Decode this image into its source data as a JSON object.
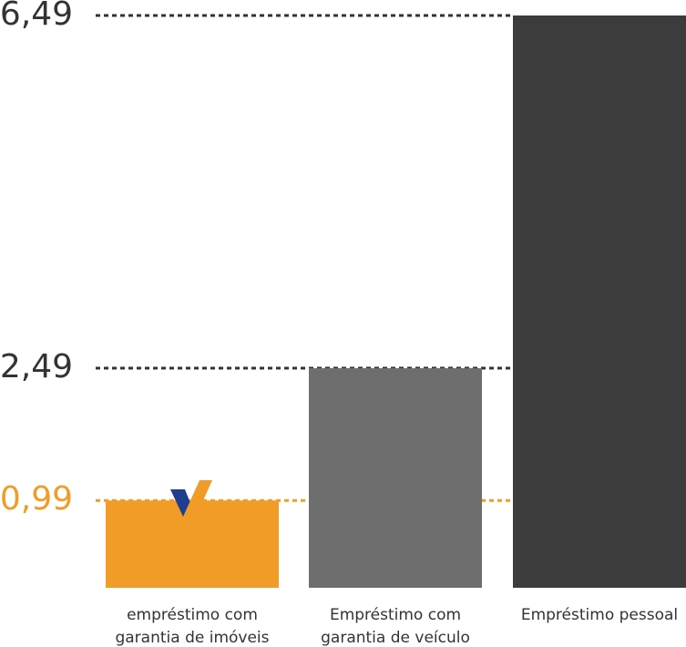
{
  "chart_data": {
    "type": "bar",
    "categories": [
      "empréstimo com garantia de imóveis",
      "Empréstimo com garantia de veículo",
      "Empréstimo pessoal"
    ],
    "values": [
      0.99,
      2.49,
      6.49
    ],
    "value_labels": [
      "0,99",
      "2,49",
      "6,49"
    ],
    "colors": [
      "#f09c26",
      "#6e6e6e",
      "#3c3c3c"
    ],
    "value_label_colors": [
      "#f09c26",
      "#333333",
      "#333333"
    ],
    "ylim": [
      0,
      6.49
    ]
  }
}
